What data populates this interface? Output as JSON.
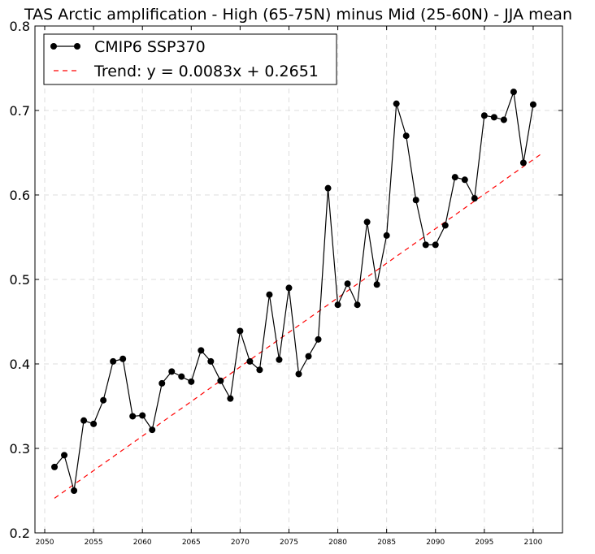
{
  "chart_data": {
    "type": "line",
    "title": "TAS Arctic amplification - High (65-75N) minus Mid (25-60N) - JJA mean",
    "xlabel": "",
    "ylabel": "",
    "xlim": [
      2049,
      2103
    ],
    "ylim": [
      0.2,
      0.8
    ],
    "x_ticks": [
      2050,
      2055,
      2060,
      2065,
      2070,
      2075,
      2080,
      2085,
      2090,
      2095,
      2100
    ],
    "y_ticks": [
      0.2,
      0.3,
      0.4,
      0.5,
      0.6,
      0.7,
      0.8
    ],
    "grid": true,
    "legend_position": "top-left",
    "series": [
      {
        "name": "CMIP6 SSP370",
        "style": "black line with circle markers",
        "color": "#000000",
        "x": [
          2051,
          2052,
          2053,
          2054,
          2055,
          2056,
          2057,
          2058,
          2059,
          2060,
          2061,
          2062,
          2063,
          2064,
          2065,
          2066,
          2067,
          2068,
          2069,
          2070,
          2071,
          2072,
          2073,
          2074,
          2075,
          2076,
          2077,
          2078,
          2079,
          2080,
          2081,
          2082,
          2083,
          2084,
          2085,
          2086,
          2087,
          2088,
          2089,
          2090,
          2091,
          2092,
          2093,
          2094,
          2095,
          2096,
          2097,
          2098,
          2099,
          2100
        ],
        "y": [
          0.278,
          0.292,
          0.25,
          0.333,
          0.329,
          0.357,
          0.403,
          0.406,
          0.338,
          0.339,
          0.322,
          0.377,
          0.391,
          0.385,
          0.379,
          0.416,
          0.403,
          0.38,
          0.359,
          0.439,
          0.403,
          0.393,
          0.482,
          0.405,
          0.49,
          0.388,
          0.409,
          0.429,
          0.608,
          0.47,
          0.495,
          0.47,
          0.568,
          0.494,
          0.552,
          0.708,
          0.67,
          0.594,
          0.541,
          0.541,
          0.564,
          0.621,
          0.618,
          0.596,
          0.694,
          0.692,
          0.689,
          0.722,
          0.638,
          0.707
        ]
      },
      {
        "name": "Trend: y = 0.0083x + 0.2651",
        "style": "red dashed line",
        "color": "#ff0000",
        "x": [
          2051,
          2101
        ],
        "y": [
          0.241,
          0.65
        ]
      }
    ]
  }
}
